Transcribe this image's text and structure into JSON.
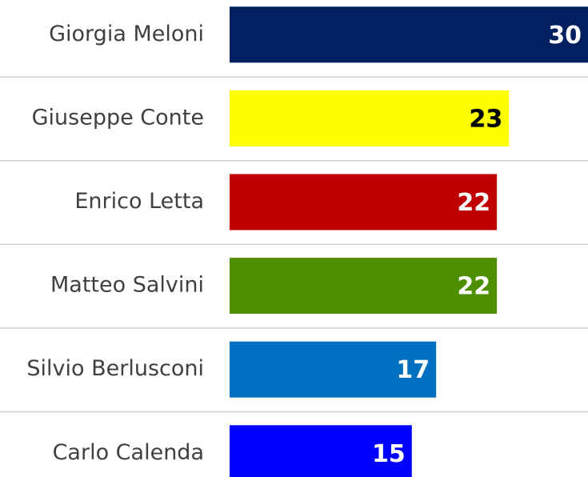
{
  "chart_data": {
    "type": "barh",
    "categories": [
      "Giorgia Meloni",
      "Giuseppe Conte",
      "Enrico Letta",
      "Matteo Salvini",
      "Silvio Berlusconi",
      "Carlo Calenda"
    ],
    "values": [
      30,
      23,
      22,
      22,
      17,
      15
    ],
    "colors": [
      "#002060",
      "#ffff00",
      "#c00000",
      "#4e8f00",
      "#0070c0",
      "#0000ff"
    ],
    "xlim": [
      0,
      29.5
    ]
  }
}
